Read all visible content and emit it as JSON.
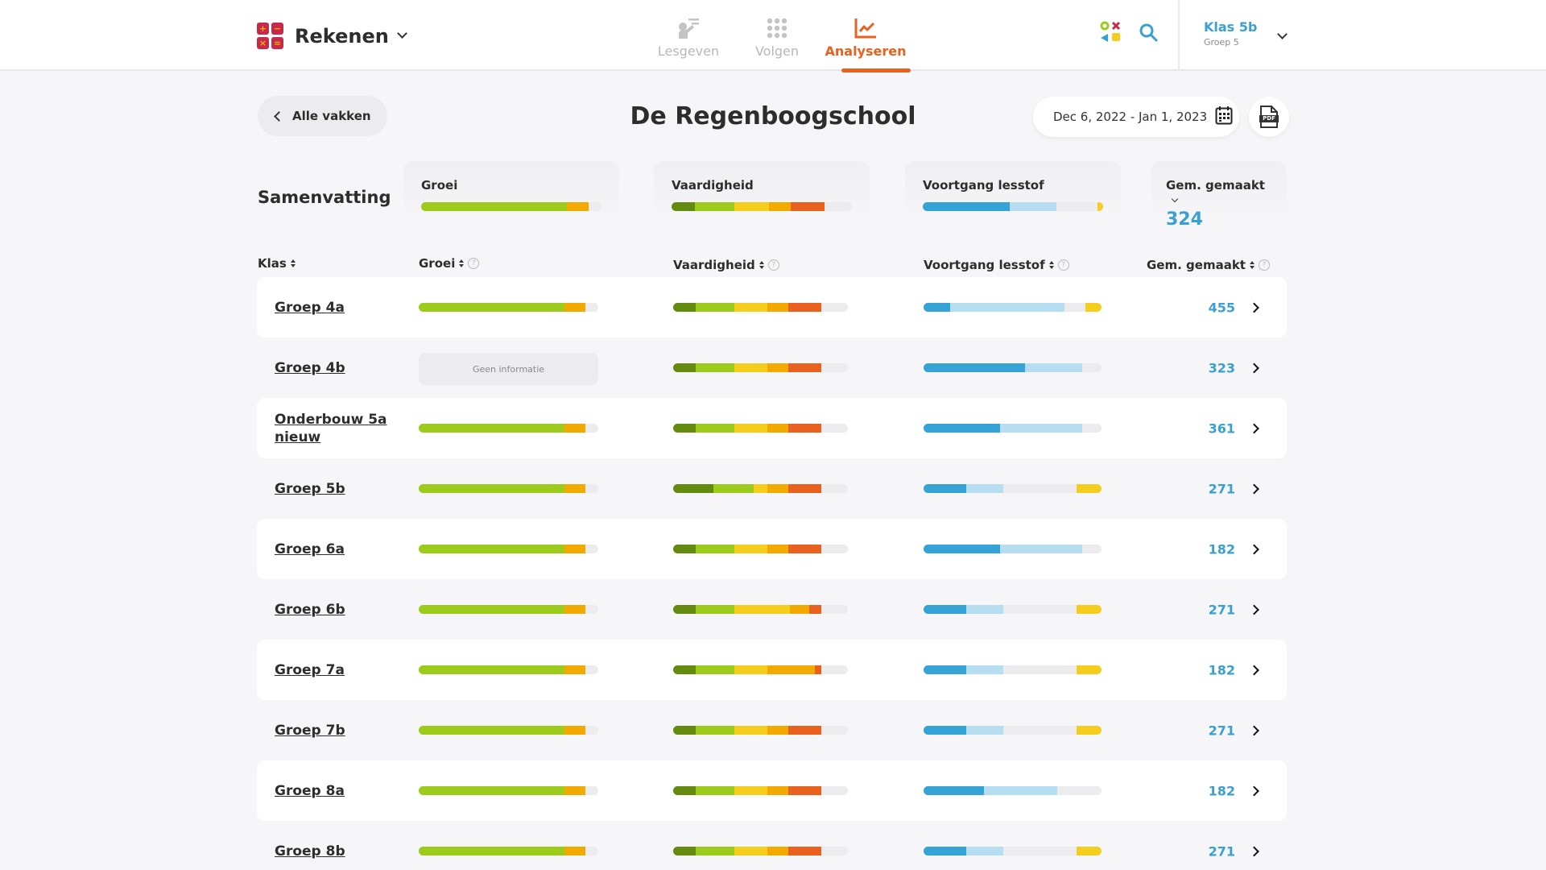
{
  "header": {
    "subject": "Rekenen",
    "logo_glyphs": [
      "+",
      "−",
      "×",
      "="
    ],
    "nav": [
      {
        "label": "Lesgeven",
        "icon": "teacher-icon",
        "active": false
      },
      {
        "label": "Volgen",
        "icon": "grid-dots-icon",
        "active": false
      },
      {
        "label": "Analyseren",
        "icon": "chart-line-icon",
        "active": true
      }
    ],
    "klas": {
      "title": "Klas 5b",
      "subtitle": "Groep 5"
    }
  },
  "toolbar": {
    "back_label": "Alle vakken",
    "page_title": "De Regenboogschool",
    "date_range": "Dec 6, 2022 - Jan 1, 2023",
    "pdf_label": "PDF"
  },
  "summary": {
    "label": "Samenvatting",
    "groei": {
      "title": "Groei",
      "segments": [
        81,
        12
      ]
    },
    "vaardigheid": {
      "title": "Vaardigheid",
      "segments": [
        13,
        22,
        19,
        12,
        19
      ]
    },
    "voortgang": {
      "title": "Voortgang lesstof",
      "segments": [
        48,
        26,
        0,
        3
      ]
    },
    "gem": {
      "title": "Gem. gemaakt",
      "value": "324"
    }
  },
  "columns": {
    "klas": "Klas",
    "groei": "Groei",
    "vaardigheid": "Vaardigheid",
    "voortgang": "Voortgang lesstof",
    "gem": "Gem. gemaakt"
  },
  "colors": {
    "groei": [
      "#9ccb1c",
      "#f2a900"
    ],
    "vaardigheid": [
      "#658a10",
      "#9ccb1c",
      "#f5cd1c",
      "#f2a900",
      "#e9611f"
    ],
    "voortgang": [
      "#36a3d6",
      "#b7ddf1",
      "#ececee",
      "#f5cd1c"
    ],
    "accent": "#e9611f",
    "link_blue": "#3aa0d3"
  },
  "rows": [
    {
      "name": "Groep 4a",
      "groei": [
        81,
        12
      ],
      "vaard": [
        13,
        22,
        19,
        12,
        19
      ],
      "voort": [
        15,
        64,
        12,
        9
      ],
      "gem": "455",
      "no_info": ""
    },
    {
      "name": "Groep 4b",
      "groei": null,
      "vaard": [
        13,
        22,
        19,
        12,
        19
      ],
      "voort": [
        57,
        32,
        0,
        0
      ],
      "gem": "323",
      "no_info": "Geen informatie"
    },
    {
      "name": "Onderbouw 5a nieuw",
      "groei": [
        81,
        12
      ],
      "vaard": [
        13,
        22,
        19,
        12,
        19
      ],
      "voort": [
        43,
        46,
        0,
        0
      ],
      "gem": "361",
      "no_info": ""
    },
    {
      "name": "Groep 5b",
      "groei": [
        81,
        12
      ],
      "vaard": [
        23,
        23,
        8,
        12,
        19
      ],
      "voort": [
        24,
        21,
        0,
        14
      ],
      "gem": "271",
      "no_info": ""
    },
    {
      "name": "Groep 6a",
      "groei": [
        81,
        12
      ],
      "vaard": [
        13,
        22,
        19,
        12,
        19
      ],
      "voort": [
        43,
        46,
        0,
        0
      ],
      "gem": "182",
      "no_info": ""
    },
    {
      "name": "Groep 6b",
      "groei": [
        81,
        12
      ],
      "vaard": [
        13,
        22,
        32,
        11,
        7
      ],
      "voort": [
        24,
        21,
        0,
        14
      ],
      "gem": "271",
      "no_info": ""
    },
    {
      "name": "Groep 7a",
      "groei": [
        81,
        12
      ],
      "vaard": [
        13,
        22,
        19,
        27,
        4
      ],
      "voort": [
        24,
        21,
        0,
        14
      ],
      "gem": "182",
      "no_info": ""
    },
    {
      "name": "Groep 7b",
      "groei": [
        81,
        12
      ],
      "vaard": [
        13,
        22,
        19,
        12,
        19
      ],
      "voort": [
        24,
        21,
        0,
        14
      ],
      "gem": "271",
      "no_info": ""
    },
    {
      "name": "Groep 8a",
      "groei": [
        81,
        12
      ],
      "vaard": [
        13,
        22,
        19,
        12,
        19
      ],
      "voort": [
        34,
        41,
        0,
        0
      ],
      "gem": "182",
      "no_info": ""
    },
    {
      "name": "Groep 8b",
      "groei": [
        81,
        12
      ],
      "vaard": [
        13,
        22,
        19,
        12,
        19
      ],
      "voort": [
        24,
        21,
        0,
        14
      ],
      "gem": "271",
      "no_info": ""
    }
  ]
}
